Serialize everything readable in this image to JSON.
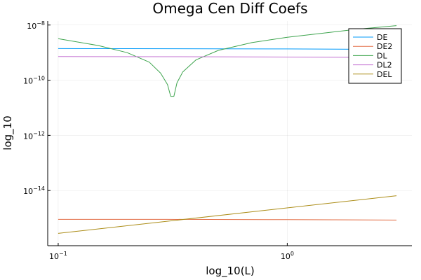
{
  "chart_data": {
    "type": "line",
    "title": "Omega Cen Diff Coefs",
    "xlabel": "log_10(L)",
    "ylabel": "log_10",
    "xscale": "log",
    "yscale": "log",
    "xlim": [
      0.09,
      3.5
    ],
    "ylim": [
      1e-16,
      1.4e-08
    ],
    "xticks": [
      {
        "value": 0.1,
        "base": "10",
        "exp": "−1"
      },
      {
        "value": 1,
        "base": "10",
        "exp": "0"
      }
    ],
    "yticks": [
      {
        "value": 1e-08,
        "base": "10",
        "exp": "−8"
      },
      {
        "value": 1e-10,
        "base": "10",
        "exp": "−10"
      },
      {
        "value": 1e-12,
        "base": "10",
        "exp": "−12"
      },
      {
        "value": 1e-14,
        "base": "10",
        "exp": "−14"
      }
    ],
    "grid": true,
    "legend_position": "top-right",
    "series": [
      {
        "name": "DE",
        "color": "#009AFA",
        "x": [
          0.1,
          0.2,
          0.5,
          1.0,
          2.0,
          3.0
        ],
        "y": [
          1.4e-09,
          1.39e-09,
          1.38e-09,
          1.36e-09,
          1.32e-09,
          1.3e-09
        ]
      },
      {
        "name": "DE2",
        "color": "#E36F47",
        "x": [
          0.1,
          0.3,
          1.0,
          3.0
        ],
        "y": [
          9e-16,
          9e-16,
          8.8e-16,
          8.5e-16
        ]
      },
      {
        "name": "DL",
        "color": "#3EA44E",
        "x": [
          0.1,
          0.15,
          0.2,
          0.25,
          0.28,
          0.3,
          0.31,
          0.32,
          0.33,
          0.35,
          0.4,
          0.5,
          0.7,
          1.0,
          1.5,
          2.0,
          3.0
        ],
        "y": [
          3.2e-09,
          1.8e-09,
          1e-09,
          4.5e-10,
          1.8e-10,
          7e-11,
          2.6e-11,
          2.6e-11,
          8e-11,
          2e-10,
          5.5e-10,
          1.2e-09,
          2.3e-09,
          3.6e-09,
          5.3e-09,
          7e-09,
          9.5e-09
        ]
      },
      {
        "name": "DL2",
        "color": "#C371D2",
        "x": [
          0.1,
          0.3,
          1.0,
          3.0
        ],
        "y": [
          7.2e-10,
          7.1e-10,
          6.9e-10,
          6.7e-10
        ]
      },
      {
        "name": "DEL",
        "color": "#AC8D18",
        "x": [
          0.1,
          3.0
        ],
        "y": [
          2.8e-16,
          6.5e-15
        ]
      }
    ]
  }
}
